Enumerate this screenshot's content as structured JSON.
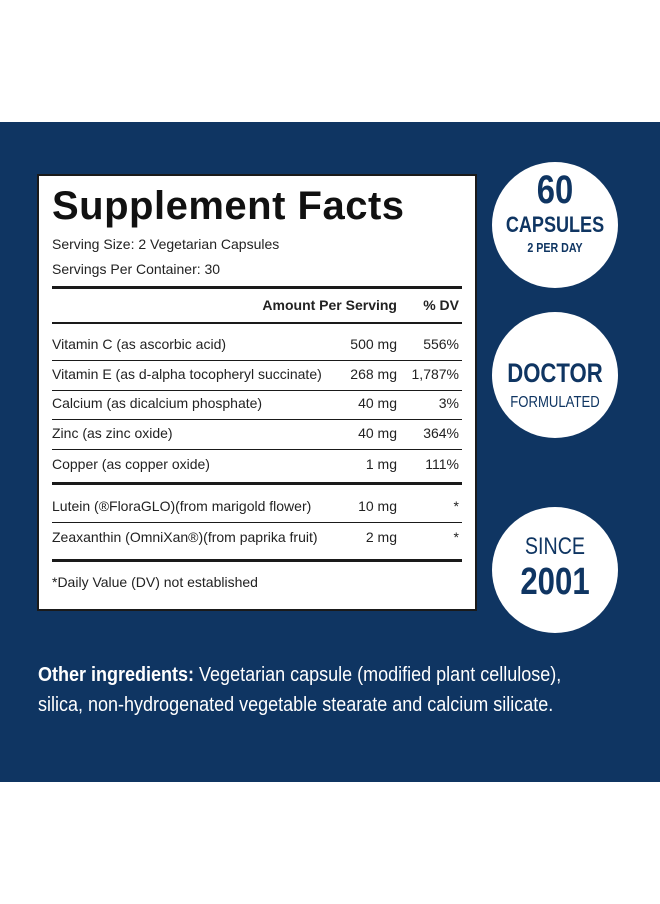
{
  "facts": {
    "title": "Supplement Facts",
    "serving_size": "Serving Size: 2 Vegetarian Capsules",
    "servings_per_container": "Servings Per Container: 30",
    "header": {
      "amount": "Amount Per Serving",
      "dv": "% DV"
    },
    "rows": [
      {
        "name": "Vitamin C (as ascorbic acid)",
        "amount": "500 mg",
        "dv": "556%"
      },
      {
        "name": "Vitamin E (as d-alpha tocopheryl succinate)",
        "amount": "268 mg",
        "dv": "1,787%"
      },
      {
        "name": "Calcium (as dicalcium phosphate)",
        "amount": "40 mg",
        "dv": "3%"
      },
      {
        "name": "Zinc (as zinc oxide)",
        "amount": "40 mg",
        "dv": "364%"
      },
      {
        "name": "Copper (as copper oxide)",
        "amount": "1 mg",
        "dv": "111%"
      },
      {
        "name": "Lutein (®FloraGLO)(from marigold flower)",
        "amount": "10 mg",
        "dv": "*"
      },
      {
        "name": "Zeaxanthin (OmniXan®)(from paprika fruit)",
        "amount": "2 mg",
        "dv": "*"
      }
    ],
    "footnote": "*Daily Value (DV) not established"
  },
  "badges": [
    {
      "big": "60",
      "line1": "CAPSULES",
      "line2": "2 PER DAY"
    },
    {
      "big": "DOCTOR",
      "line1": "FORMULATED"
    },
    {
      "line1": "SINCE",
      "big": "2001"
    }
  ],
  "ingredients": {
    "label": "Other ingredients:",
    "text": "Vegetarian capsule (modified plant cellulose), silica, non-hydrogenated vegetable stearate and calcium silicate."
  }
}
